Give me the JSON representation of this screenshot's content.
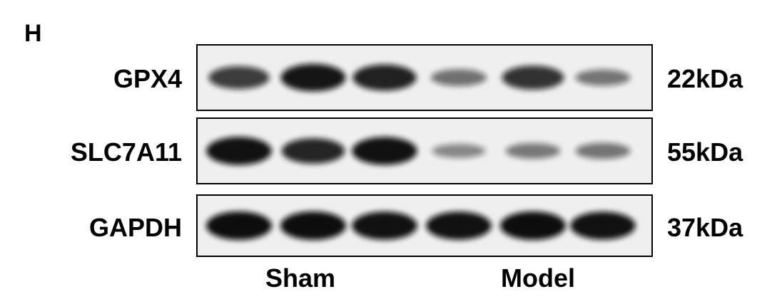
{
  "panel_letter": "H",
  "rows": [
    {
      "protein": "GPX4",
      "mw": "22kDa",
      "intensities": [
        0.72,
        0.95,
        0.88,
        0.42,
        0.78,
        0.38
      ]
    },
    {
      "protein": "SLC7A11",
      "mw": "55kDa",
      "intensities": [
        0.98,
        0.85,
        0.97,
        0.28,
        0.36,
        0.38
      ]
    },
    {
      "protein": "GAPDH",
      "mw": "37kDa",
      "intensities": [
        1.0,
        1.0,
        0.98,
        0.98,
        1.0,
        0.97
      ]
    }
  ],
  "groups": [
    "Sham",
    "Model"
  ],
  "colors": {
    "band": "#0d0d0d",
    "background": "#efefef"
  }
}
